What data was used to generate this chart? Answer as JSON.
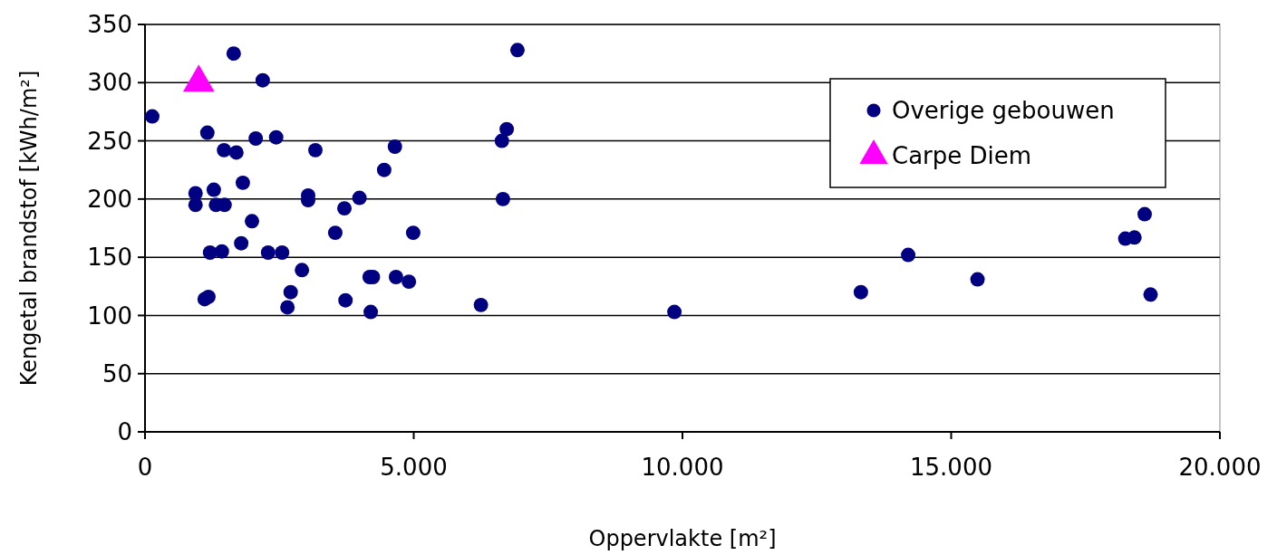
{
  "chart_data": {
    "type": "scatter",
    "xlabel": "Oppervlakte [m²]",
    "ylabel": "Kengetal brandstof [kWh/m²]",
    "xlim": [
      0,
      20000
    ],
    "xticks": [
      0,
      {
        "value": 5000,
        "label": "5.000"
      },
      {
        "value": 10000,
        "label": "10.000"
      },
      {
        "value": 15000,
        "label": "15.000"
      },
      {
        "value": 20000,
        "label": "20.000"
      }
    ],
    "ylim": [
      0,
      350
    ],
    "yticks": [
      0,
      50,
      100,
      150,
      200,
      250,
      300,
      350
    ],
    "grid": "y",
    "legend": "top right",
    "series": [
      {
        "name": "Overige gebouwen",
        "color": "#000080",
        "marker": "circle",
        "x": [
          135,
          1650,
          2190,
          1160,
          1470,
          1700,
          2060,
          2440,
          3170,
          4650,
          4450,
          1820,
          940,
          940,
          1280,
          1320,
          1480,
          1990,
          3035,
          3035,
          3710,
          3990,
          3540,
          4990,
          1790,
          1210,
          1430,
          2290,
          2550,
          2920,
          2710,
          2650,
          1110,
          1180,
          3730,
          4200,
          4180,
          4240,
          4670,
          4910,
          6250,
          6660,
          6640,
          6730,
          6930,
          9850,
          13320,
          14200,
          15490,
          18240,
          18410,
          18600,
          18710
        ],
        "values": [
          271,
          325,
          302,
          257,
          242,
          240,
          252,
          253,
          242,
          245,
          225,
          214,
          205,
          195,
          208,
          195,
          195,
          181,
          203,
          199,
          192,
          201,
          171,
          171,
          162,
          154,
          155,
          154,
          154,
          139,
          120,
          107,
          114,
          116,
          113,
          103,
          133,
          133,
          133,
          129,
          109,
          200,
          250,
          260,
          328,
          103,
          120,
          152,
          131,
          166,
          167,
          187,
          118
        ]
      },
      {
        "name": "Carpe Diem",
        "color": "#ff00ff",
        "marker": "triangle",
        "x": [
          1000
        ],
        "values": [
          300
        ]
      }
    ]
  }
}
